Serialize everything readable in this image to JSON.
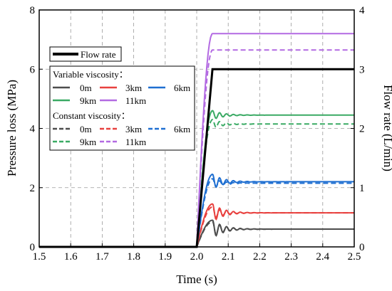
{
  "chart_data": {
    "type": "line",
    "xlabel": "Time (s)",
    "ylabel": "Pressure loss (MPa)",
    "y2label": "Flow rate (L/min)",
    "xlim": [
      1.5,
      2.5
    ],
    "ylim": [
      0,
      8
    ],
    "y2lim": [
      0,
      4
    ],
    "x_ticks": [
      "1.5",
      "1.6",
      "1.7",
      "1.8",
      "1.9",
      "2.0",
      "2.1",
      "2.2",
      "2.3",
      "2.4",
      "2.5"
    ],
    "y_ticks": [
      "0",
      "2",
      "4",
      "6",
      "8"
    ],
    "y2_ticks": [
      "0",
      "1",
      "2",
      "3",
      "4"
    ],
    "grid": true,
    "legend": {
      "flow_label": "Flow rate",
      "variable_title": "Variable viscosity：",
      "constant_title": "Constant viscosity：",
      "depth_labels": [
        "0m",
        "3km",
        "6km",
        "9km",
        "11km"
      ]
    },
    "colors": {
      "flow": "#000000",
      "0m": "#4d4d4d",
      "3km": "#e8413f",
      "6km": "#1f6fd1",
      "9km": "#3aaa64",
      "11km": "#b36ae2"
    },
    "flow_rate": {
      "name": "Flow rate",
      "axis": "right",
      "x": [
        1.5,
        2.0,
        2.05,
        2.5
      ],
      "y": [
        0,
        0,
        3,
        3
      ]
    },
    "series": [
      {
        "name": "0m",
        "group": "Variable viscosity",
        "color": "#4d4d4d",
        "dash": "solid",
        "steady": 0.6,
        "peak": 0.9,
        "osc": 0.28
      },
      {
        "name": "3km",
        "group": "Variable viscosity",
        "color": "#e8413f",
        "dash": "solid",
        "steady": 1.15,
        "peak": 1.45,
        "osc": 0.25
      },
      {
        "name": "6km",
        "group": "Variable viscosity",
        "color": "#1f6fd1",
        "dash": "solid",
        "steady": 2.2,
        "peak": 2.45,
        "osc": 0.2
      },
      {
        "name": "9km",
        "group": "Variable viscosity",
        "color": "#3aaa64",
        "dash": "solid",
        "steady": 4.45,
        "peak": 4.6,
        "osc": 0.12
      },
      {
        "name": "11km",
        "group": "Variable viscosity",
        "color": "#b36ae2",
        "dash": "solid",
        "steady": 7.2,
        "peak": 7.2,
        "osc": 0.0
      },
      {
        "name": "0m",
        "group": "Constant viscosity",
        "color": "#4d4d4d",
        "dash": "dashed",
        "steady": 0.6,
        "peak": 0.85,
        "osc": 0.25
      },
      {
        "name": "3km",
        "group": "Constant viscosity",
        "color": "#e8413f",
        "dash": "dashed",
        "steady": 1.15,
        "peak": 1.35,
        "osc": 0.2
      },
      {
        "name": "6km",
        "group": "Constant viscosity",
        "color": "#1f6fd1",
        "dash": "dashed",
        "steady": 2.15,
        "peak": 2.3,
        "osc": 0.15
      },
      {
        "name": "9km",
        "group": "Constant viscosity",
        "color": "#3aaa64",
        "dash": "dashed",
        "steady": 4.15,
        "peak": 4.3,
        "osc": 0.1
      },
      {
        "name": "11km",
        "group": "Constant viscosity",
        "color": "#b36ae2",
        "dash": "dashed",
        "steady": 6.65,
        "peak": 6.65,
        "osc": 0.0
      }
    ]
  }
}
